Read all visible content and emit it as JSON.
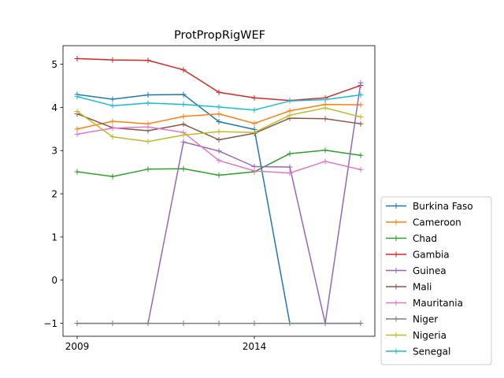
{
  "chart_data": {
    "type": "line",
    "title": "ProtPropRigWEF",
    "xlabel": "",
    "ylabel": "",
    "x": [
      2009,
      2010,
      2011,
      2012,
      2013,
      2014,
      2015,
      2016,
      2017
    ],
    "x_ticks": [
      2009,
      2014
    ],
    "x_tick_labels": [
      "2009",
      "2014"
    ],
    "y_ticks": [
      -1,
      0,
      1,
      2,
      3,
      4,
      5
    ],
    "y_tick_labels": [
      "−1",
      "0",
      "1",
      "2",
      "3",
      "4",
      "5"
    ],
    "xlim": [
      2008.6,
      2017.4
    ],
    "ylim": [
      -1.3,
      5.43
    ],
    "grid": false,
    "legend_position": "outside-right-bottom",
    "series": [
      {
        "name": "Burkina Faso",
        "color": "#1f77b4",
        "values": [
          4.3,
          4.19,
          4.29,
          4.3,
          3.67,
          3.49,
          -1.0,
          -1.0,
          -1.0
        ]
      },
      {
        "name": "Cameroon",
        "color": "#ff7f0e",
        "values": [
          3.5,
          3.68,
          3.62,
          3.79,
          3.85,
          3.63,
          3.92,
          4.07,
          4.06
        ]
      },
      {
        "name": "Chad",
        "color": "#2ca02c",
        "values": [
          2.51,
          2.4,
          2.57,
          2.58,
          2.43,
          2.51,
          2.93,
          3.01,
          2.89
        ]
      },
      {
        "name": "Gambia",
        "color": "#d62728",
        "values": [
          5.13,
          5.1,
          5.09,
          4.87,
          4.35,
          4.22,
          4.16,
          4.22,
          4.51
        ]
      },
      {
        "name": "Guinea",
        "color": "#9467bd",
        "values": [
          -1.0,
          -1.0,
          -1.0,
          3.2,
          2.99,
          2.63,
          2.62,
          -1.0,
          4.57
        ]
      },
      {
        "name": "Mali",
        "color": "#8c564b",
        "values": [
          3.85,
          3.53,
          3.46,
          3.61,
          3.25,
          3.4,
          3.75,
          3.74,
          3.62
        ]
      },
      {
        "name": "Mauritania",
        "color": "#e377c2",
        "values": [
          3.38,
          3.52,
          3.55,
          3.42,
          2.77,
          2.53,
          2.48,
          2.75,
          2.56
        ]
      },
      {
        "name": "Niger",
        "color": "#7f7f7f",
        "values": [
          -1.0,
          -1.0,
          -1.0,
          -1.0,
          -1.0,
          -1.0,
          -1.0,
          -1.0,
          -1.0
        ]
      },
      {
        "name": "Nigeria",
        "color": "#bcbd22",
        "values": [
          3.91,
          3.32,
          3.21,
          3.36,
          3.44,
          3.42,
          3.82,
          3.99,
          3.78
        ]
      },
      {
        "name": "Senegal",
        "color": "#17becf",
        "values": [
          4.25,
          4.04,
          4.1,
          4.07,
          4.01,
          3.94,
          4.15,
          4.18,
          4.29
        ]
      }
    ]
  }
}
